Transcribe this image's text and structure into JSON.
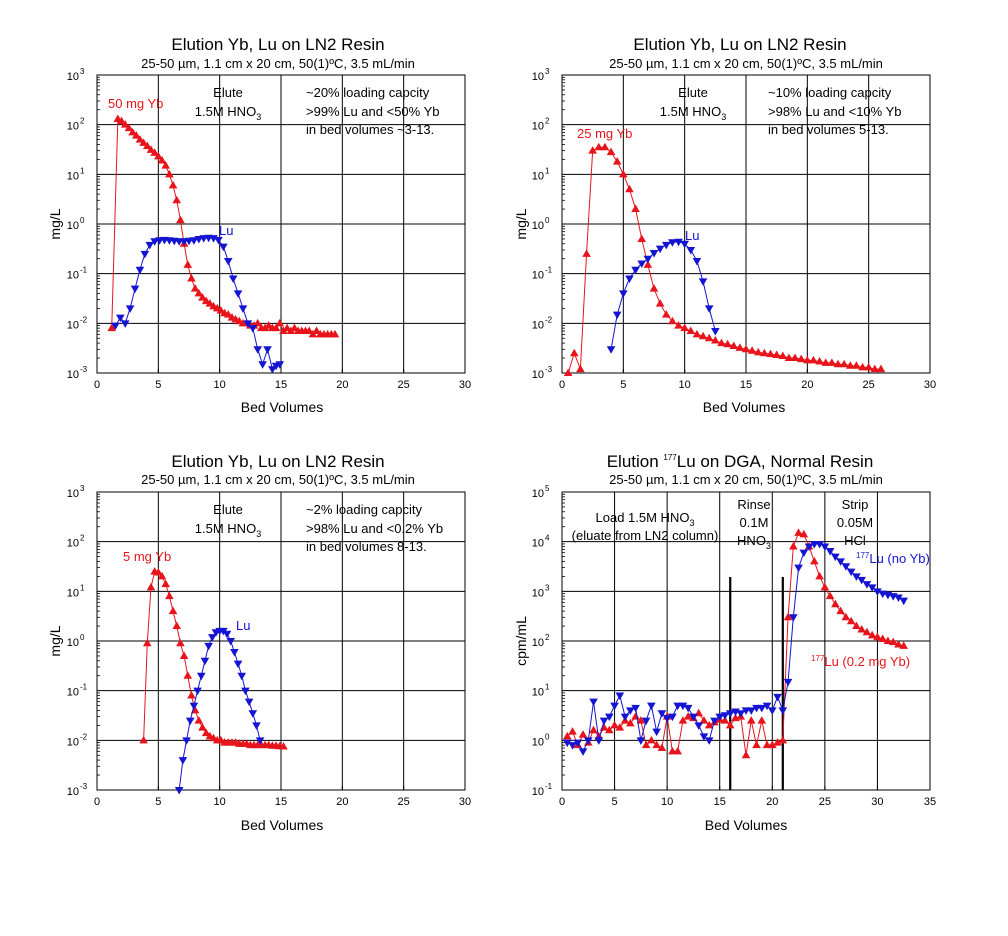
{
  "chart_data": [
    {
      "type": "scatter",
      "title": "Elution Yb, Lu on LN2 Resin",
      "subtitle": "25-50 µm, 1.1 cm x 20 cm, 50(1)ºC, 3.5 mL/min",
      "xlabel": "Bed Volumes",
      "ylabel": "mg/L",
      "xlim": [
        0,
        30
      ],
      "ylim": [
        0.001,
        1000
      ],
      "yscale": "log",
      "grid": true,
      "xticks": [
        "0",
        "5",
        "10",
        "15",
        "20",
        "25",
        "30"
      ],
      "ytick_base": "10",
      "ytick_exponents": [
        "-3",
        "-2",
        "-1",
        "0",
        "1",
        "2",
        "3"
      ],
      "annotations": [
        {
          "text": "Elute",
          "color": "#000000"
        },
        {
          "text": "1.5M HNO",
          "sub": "3",
          "color": "#000000"
        },
        {
          "text": "~20% loading capcity",
          "color": "#000000"
        },
        {
          "text": ">99% Lu and <50% Yb",
          "color": "#000000"
        },
        {
          "text": "in bed volumes ~3-13.",
          "color": "#000000"
        },
        {
          "text": "50 mg Yb",
          "color": "#e8141b"
        },
        {
          "text": "Lu",
          "color": "#1414d2"
        }
      ],
      "series": [
        {
          "marker": "triangle-up",
          "color": "#e8141b",
          "x": [
            1.2,
            1.7,
            2.0,
            2.3,
            2.6,
            2.9,
            3.2,
            3.5,
            3.8,
            4.1,
            4.4,
            4.7,
            5.0,
            5.3,
            5.6,
            5.9,
            6.2,
            6.5,
            6.8,
            7.1,
            7.4,
            7.7,
            8.0,
            8.3,
            8.6,
            8.9,
            9.2,
            9.5,
            9.8,
            10.1,
            10.4,
            10.7,
            11.0,
            11.3,
            11.6,
            11.9,
            12.2,
            12.5,
            12.8,
            13.1,
            13.4,
            13.7,
            14.0,
            14.3,
            14.6,
            14.9,
            15.2,
            15.5,
            15.8,
            16.1,
            16.4,
            16.7,
            17.0,
            17.3,
            17.6,
            17.9,
            18.2,
            18.5,
            18.8,
            19.1,
            19.4
          ],
          "y": [
            0.008,
            130,
            118,
            100,
            85,
            70,
            60,
            50,
            43,
            37,
            31,
            27,
            23,
            19,
            15,
            10,
            6,
            3,
            1.2,
            0.4,
            0.15,
            0.08,
            0.05,
            0.04,
            0.033,
            0.028,
            0.025,
            0.022,
            0.02,
            0.018,
            0.016,
            0.015,
            0.013,
            0.012,
            0.011,
            0.01,
            0.01,
            0.009,
            0.009,
            0.01,
            0.008,
            0.008,
            0.009,
            0.008,
            0.008,
            0.01,
            0.007,
            0.008,
            0.007,
            0.008,
            0.007,
            0.007,
            0.007,
            0.007,
            0.006,
            0.007,
            0.006,
            0.006,
            0.006,
            0.006,
            0.006
          ]
        },
        {
          "marker": "triangle-down",
          "color": "#1414d2",
          "x": [
            1.5,
            1.9,
            2.3,
            2.7,
            3.1,
            3.5,
            3.9,
            4.3,
            4.7,
            5.1,
            5.5,
            5.9,
            6.3,
            6.7,
            7.1,
            7.5,
            7.9,
            8.3,
            8.7,
            9.1,
            9.5,
            9.9,
            10.3,
            10.7,
            11.1,
            11.5,
            11.9,
            12.3,
            12.7,
            13.1,
            13.5,
            13.9,
            14.3,
            14.6,
            14.9
          ],
          "y": [
            0.009,
            0.013,
            0.01,
            0.02,
            0.05,
            0.12,
            0.25,
            0.38,
            0.45,
            0.47,
            0.48,
            0.47,
            0.46,
            0.45,
            0.45,
            0.46,
            0.47,
            0.5,
            0.52,
            0.53,
            0.52,
            0.48,
            0.35,
            0.18,
            0.08,
            0.04,
            0.02,
            0.01,
            0.008,
            0.003,
            0.0015,
            0.003,
            0.0012,
            0.0014,
            0.0015
          ]
        }
      ]
    },
    {
      "type": "scatter",
      "title": "Elution Yb, Lu on LN2 Resin",
      "subtitle": "25-50 µm, 1.1 cm x 20 cm, 50(1)ºC, 3.5 mL/min",
      "xlabel": "Bed Volumes",
      "ylabel": "mg/L",
      "xlim": [
        0,
        30
      ],
      "ylim": [
        0.001,
        1000
      ],
      "yscale": "log",
      "grid": true,
      "xticks": [
        "0",
        "5",
        "10",
        "15",
        "20",
        "25",
        "30"
      ],
      "ytick_base": "10",
      "ytick_exponents": [
        "-3",
        "-2",
        "-1",
        "0",
        "1",
        "2",
        "3"
      ],
      "annotations": [
        {
          "text": "Elute",
          "color": "#000000"
        },
        {
          "text": "1.5M HNO",
          "sub": "3",
          "color": "#000000"
        },
        {
          "text": "~10% loading capcity",
          "color": "#000000"
        },
        {
          "text": ">98% Lu and <10% Yb",
          "color": "#000000"
        },
        {
          "text": "in bed volumes 5-13.",
          "color": "#000000"
        },
        {
          "text": "25 mg Yb",
          "color": "#e8141b"
        },
        {
          "text": "Lu",
          "color": "#1414d2"
        }
      ],
      "series": [
        {
          "marker": "triangle-up",
          "color": "#e8141b",
          "x": [
            0.5,
            1.0,
            1.5,
            2.0,
            2.5,
            3.0,
            3.5,
            4.0,
            4.5,
            5.0,
            5.5,
            6.0,
            6.5,
            7.0,
            7.5,
            8.0,
            8.5,
            9.0,
            9.5,
            10.0,
            10.5,
            11.0,
            11.5,
            12.0,
            12.5,
            13.0,
            13.5,
            14.0,
            14.5,
            15.0,
            15.5,
            16.0,
            16.5,
            17.0,
            17.5,
            18.0,
            18.5,
            19.0,
            19.5,
            20.0,
            20.5,
            21.0,
            21.5,
            22.0,
            22.5,
            23.0,
            23.5,
            24.0,
            24.5,
            25.0,
            25.5,
            26.0
          ],
          "y": [
            0.001,
            0.0025,
            0.0012,
            0.25,
            30,
            35,
            35,
            28,
            18,
            10,
            5,
            2,
            0.5,
            0.15,
            0.05,
            0.025,
            0.015,
            0.011,
            0.009,
            0.008,
            0.007,
            0.006,
            0.0055,
            0.005,
            0.0045,
            0.004,
            0.0038,
            0.0035,
            0.0032,
            0.003,
            0.0028,
            0.0026,
            0.0025,
            0.0024,
            0.0023,
            0.0022,
            0.002,
            0.002,
            0.0019,
            0.0018,
            0.0018,
            0.0017,
            0.0016,
            0.0016,
            0.0015,
            0.0015,
            0.0014,
            0.0014,
            0.0013,
            0.0013,
            0.0012,
            0.0012
          ]
        },
        {
          "marker": "triangle-down",
          "color": "#1414d2",
          "x": [
            4.0,
            4.5,
            5.0,
            5.5,
            6.0,
            6.5,
            7.0,
            7.5,
            8.0,
            8.5,
            9.0,
            9.5,
            10.0,
            10.5,
            11.0,
            11.5,
            12.0,
            12.5
          ],
          "y": [
            0.003,
            0.015,
            0.04,
            0.08,
            0.12,
            0.16,
            0.2,
            0.26,
            0.32,
            0.38,
            0.43,
            0.44,
            0.4,
            0.3,
            0.18,
            0.07,
            0.02,
            0.007
          ]
        }
      ]
    },
    {
      "type": "scatter",
      "title": "Elution Yb, Lu on LN2 Resin",
      "subtitle": "25-50 µm, 1.1 cm x 20 cm, 50(1)ºC, 3.5 mL/min",
      "xlabel": "Bed Volumes",
      "ylabel": "mg/L",
      "xlim": [
        0,
        30
      ],
      "ylim": [
        0.001,
        1000
      ],
      "yscale": "log",
      "grid": true,
      "xticks": [
        "0",
        "5",
        "10",
        "15",
        "20",
        "25",
        "30"
      ],
      "ytick_base": "10",
      "ytick_exponents": [
        "-3",
        "-2",
        "-1",
        "0",
        "1",
        "2",
        "3"
      ],
      "annotations": [
        {
          "text": "Elute",
          "color": "#000000"
        },
        {
          "text": "1.5M HNO",
          "sub": "3",
          "color": "#000000"
        },
        {
          "text": "~2% loading capcity",
          "color": "#000000"
        },
        {
          "text": ">98% Lu and <0.2% Yb",
          "color": "#000000"
        },
        {
          "text": "in bed volumes 8-13.",
          "color": "#000000"
        },
        {
          "text": "5 mg Yb",
          "color": "#e8141b"
        },
        {
          "text": "Lu",
          "color": "#1414d2"
        }
      ],
      "series": [
        {
          "marker": "triangle-up",
          "color": "#e8141b",
          "x": [
            3.8,
            4.1,
            4.4,
            4.7,
            5.0,
            5.3,
            5.6,
            5.9,
            6.2,
            6.5,
            6.8,
            7.1,
            7.4,
            7.7,
            8.0,
            8.3,
            8.6,
            8.9,
            9.2,
            9.5,
            9.8,
            10.1,
            10.4,
            10.7,
            11.0,
            11.3,
            11.6,
            11.9,
            12.2,
            12.5,
            12.8,
            13.1,
            13.4,
            13.7,
            14.0,
            14.3,
            14.6,
            14.9,
            15.2
          ],
          "y": [
            0.01,
            0.9,
            12,
            25,
            24,
            20,
            14,
            8,
            4,
            2,
            0.9,
            0.5,
            0.2,
            0.08,
            0.04,
            0.025,
            0.018,
            0.014,
            0.012,
            0.011,
            0.01,
            0.01,
            0.009,
            0.009,
            0.009,
            0.009,
            0.0085,
            0.0085,
            0.0085,
            0.008,
            0.008,
            0.008,
            0.008,
            0.008,
            0.008,
            0.0078,
            0.0078,
            0.0076,
            0.0075
          ]
        },
        {
          "marker": "triangle-down",
          "color": "#1414d2",
          "x": [
            6.7,
            7.0,
            7.3,
            7.6,
            7.9,
            8.2,
            8.5,
            8.8,
            9.1,
            9.4,
            9.7,
            10.0,
            10.3,
            10.6,
            10.9,
            11.2,
            11.5,
            11.8,
            12.1,
            12.4,
            12.7,
            13.0,
            13.3
          ],
          "y": [
            0.001,
            0.004,
            0.01,
            0.025,
            0.05,
            0.1,
            0.2,
            0.4,
            0.8,
            1.2,
            1.5,
            1.6,
            1.6,
            1.4,
            1.0,
            0.6,
            0.35,
            0.2,
            0.1,
            0.06,
            0.035,
            0.02,
            0.01
          ]
        }
      ]
    },
    {
      "type": "scatter",
      "title": "Elution  Lu on DGA, Normal Resin",
      "title_sup": "177",
      "subtitle": "25-50 µm, 1.1 cm x 20 cm, 50(1)ºC, 3.5 mL/min",
      "xlabel": "Bed Volumes",
      "ylabel": "cpm/mL",
      "xlim": [
        0,
        35
      ],
      "ylim": [
        0.1,
        100000
      ],
      "yscale": "log",
      "grid": true,
      "xticks": [
        "0",
        "5",
        "10",
        "15",
        "20",
        "25",
        "30",
        "35"
      ],
      "ytick_base": "10",
      "ytick_exponents": [
        "-1",
        "0",
        "1",
        "2",
        "3",
        "4",
        "5"
      ],
      "annotations": [
        {
          "text": "Load 1.5M HNO",
          "sub": "3",
          "color": "#000000"
        },
        {
          "text": "(eluate from LN2 column)",
          "color": "#000000"
        },
        {
          "text": "Rinse",
          "color": "#000000"
        },
        {
          "text": "0.1M",
          "color": "#000000"
        },
        {
          "text": "HNO",
          "sub": "3",
          "color": "#000000"
        },
        {
          "text": "Strip",
          "color": "#000000"
        },
        {
          "text": "0.05M",
          "color": "#000000"
        },
        {
          "text": "HCl",
          "color": "#000000"
        },
        {
          "text": "Lu (no Yb)",
          "sup": "177",
          "color": "#1414d2"
        },
        {
          "text": "Lu (0.2 mg Yb)",
          "sup": "177",
          "color": "#e8141b"
        }
      ],
      "phase_lines_x": [
        16,
        21
      ],
      "series": [
        {
          "marker": "triangle-up",
          "color": "#e8141b",
          "x": [
            0.5,
            1.0,
            1.5,
            2.0,
            2.5,
            3.0,
            3.5,
            4.0,
            4.5,
            5.0,
            5.5,
            6.0,
            6.5,
            7.0,
            7.5,
            8.0,
            8.5,
            9.0,
            9.5,
            10.0,
            10.5,
            11.0,
            11.5,
            12.0,
            12.5,
            13.0,
            13.5,
            14.0,
            14.5,
            15.0,
            15.5,
            16.0,
            16.5,
            17.0,
            17.5,
            18.0,
            18.5,
            19.0,
            19.5,
            20.0,
            20.5,
            21.0,
            21.5,
            22.0,
            22.5,
            23.0,
            23.5,
            24.0,
            24.5,
            25.0,
            25.5,
            26.0,
            26.5,
            27.0,
            27.5,
            28.0,
            28.5,
            29.0,
            29.5,
            30.0,
            30.5,
            31.0,
            31.5,
            32.0,
            32.5
          ],
          "y": [
            1.2,
            1.5,
            0.8,
            1.3,
            0.9,
            1.6,
            1.2,
            1.8,
            1.6,
            2.0,
            1.8,
            2.5,
            2.2,
            3.0,
            2.5,
            0.8,
            1.0,
            0.8,
            0.7,
            3.0,
            0.6,
            0.6,
            2.5,
            3.0,
            2.8,
            3.5,
            2.5,
            2.0,
            2.3,
            2.6,
            2.5,
            2.0,
            2.8,
            3.0,
            0.5,
            2.5,
            0.8,
            2.5,
            0.8,
            0.8,
            0.9,
            1.0,
            300,
            8000,
            15000,
            14000,
            8000,
            4000,
            2000,
            1200,
            800,
            550,
            400,
            300,
            250,
            200,
            170,
            150,
            130,
            120,
            110,
            100,
            95,
            85,
            80
          ]
        },
        {
          "marker": "triangle-down",
          "color": "#1414d2",
          "x": [
            0.5,
            1.0,
            1.5,
            2.0,
            2.5,
            3.0,
            3.5,
            4.0,
            4.5,
            5.0,
            5.5,
            6.0,
            6.5,
            7.0,
            7.5,
            8.0,
            8.5,
            9.0,
            9.5,
            10.0,
            10.5,
            11.0,
            11.5,
            12.0,
            12.5,
            13.0,
            13.5,
            14.0,
            14.5,
            15.0,
            15.5,
            16.0,
            16.5,
            17.0,
            17.5,
            18.0,
            18.5,
            19.0,
            19.5,
            20.0,
            20.5,
            21.0,
            21.5,
            22.0,
            22.5,
            23.0,
            23.5,
            24.0,
            24.5,
            25.0,
            25.5,
            26.0,
            26.5,
            27.0,
            27.5,
            28.0,
            28.5,
            29.0,
            29.5,
            30.0,
            30.5,
            31.0,
            31.5,
            32.0,
            32.5
          ],
          "y": [
            0.9,
            0.8,
            0.9,
            0.6,
            1.0,
            6.0,
            1.0,
            2.5,
            3.0,
            5.0,
            8.0,
            3.0,
            4.0,
            4.5,
            1.0,
            2.5,
            5.0,
            1.5,
            3.5,
            2.8,
            3.0,
            5.0,
            5.0,
            4.5,
            3.0,
            2.0,
            1.2,
            1.0,
            2.5,
            3.0,
            3.2,
            3.5,
            3.8,
            3.5,
            4.0,
            4.0,
            4.5,
            4.5,
            5.0,
            4.0,
            7.5,
            4.0,
            15,
            300,
            3000,
            6000,
            8000,
            9000,
            9000,
            8000,
            6500,
            5000,
            4000,
            3200,
            2500,
            2000,
            1700,
            1400,
            1200,
            1000,
            900,
            850,
            800,
            750,
            650
          ]
        }
      ]
    }
  ]
}
